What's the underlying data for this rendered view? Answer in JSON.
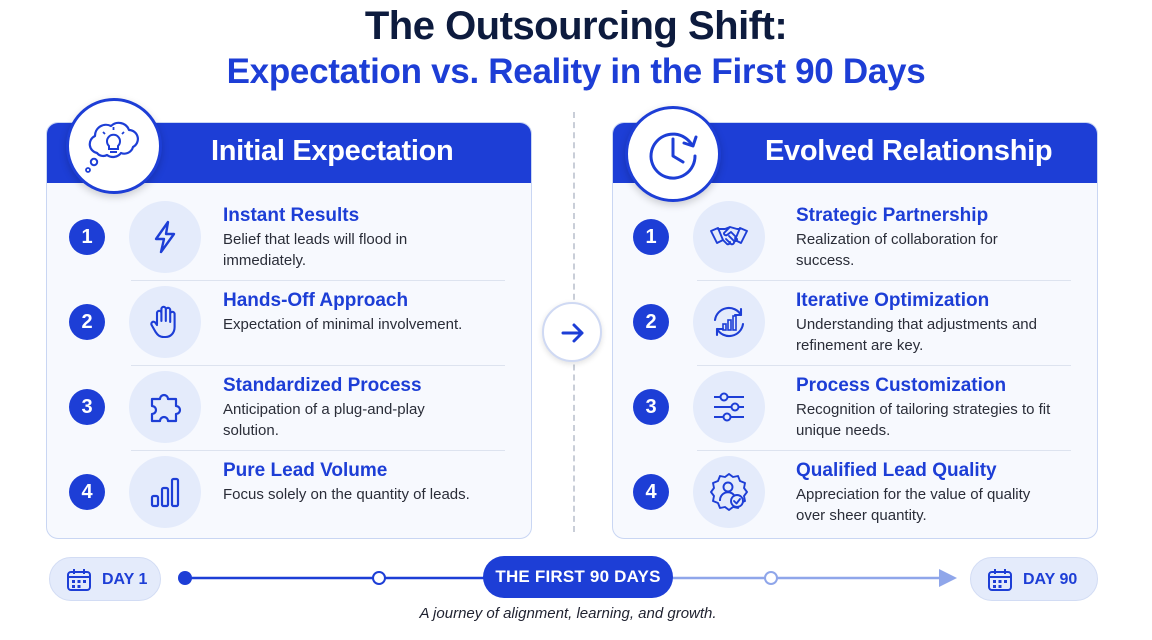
{
  "header": {
    "title_line1": "The Outsourcing Shift:",
    "title_line2": "Expectation vs. Reality in the First 90 Days"
  },
  "colors": {
    "accent": "#1d3ed6",
    "dark_title": "#0d1b3e",
    "icon_bg": "#e4ebfb",
    "panel_bg": "#f7f9fe"
  },
  "left_panel": {
    "title": "Initial Expectation",
    "header_icon": "thought-bubble-lightbulb-icon",
    "items": [
      {
        "number": "1",
        "icon": "lightning-icon",
        "title": "Instant Results",
        "desc": "Belief that leads will flood in immediately."
      },
      {
        "number": "2",
        "icon": "raised-hand-icon",
        "title": "Hands-Off Approach",
        "desc": "Expectation of minimal involvement."
      },
      {
        "number": "3",
        "icon": "puzzle-piece-icon",
        "title": "Standardized Process",
        "desc": "Anticipation of a plug-and-play solution."
      },
      {
        "number": "4",
        "icon": "bar-chart-icon",
        "title": "Pure Lead Volume",
        "desc": "Focus solely on the quantity of leads."
      }
    ]
  },
  "right_panel": {
    "title": "Evolved Relationship",
    "header_icon": "clock-refresh-icon",
    "items": [
      {
        "number": "1",
        "icon": "handshake-icon",
        "title": "Strategic Partnership",
        "desc": "Realization of collaboration for success."
      },
      {
        "number": "2",
        "icon": "cycle-chart-icon",
        "title": "Iterative Optimization",
        "desc": "Understanding that adjustments and refinement are key."
      },
      {
        "number": "3",
        "icon": "sliders-icon",
        "title": "Process Customization",
        "desc": "Recognition of tailoring strategies to fit unique needs."
      },
      {
        "number": "4",
        "icon": "quality-badge-icon",
        "title": "Qualified Lead Quality",
        "desc": "Appreciation for the value of quality over sheer quantity."
      }
    ]
  },
  "timeline": {
    "start_label": "DAY 1",
    "center_label": "THE FIRST 90 DAYS",
    "end_label": "DAY 90",
    "caption": "A journey of alignment, learning, and growth."
  }
}
